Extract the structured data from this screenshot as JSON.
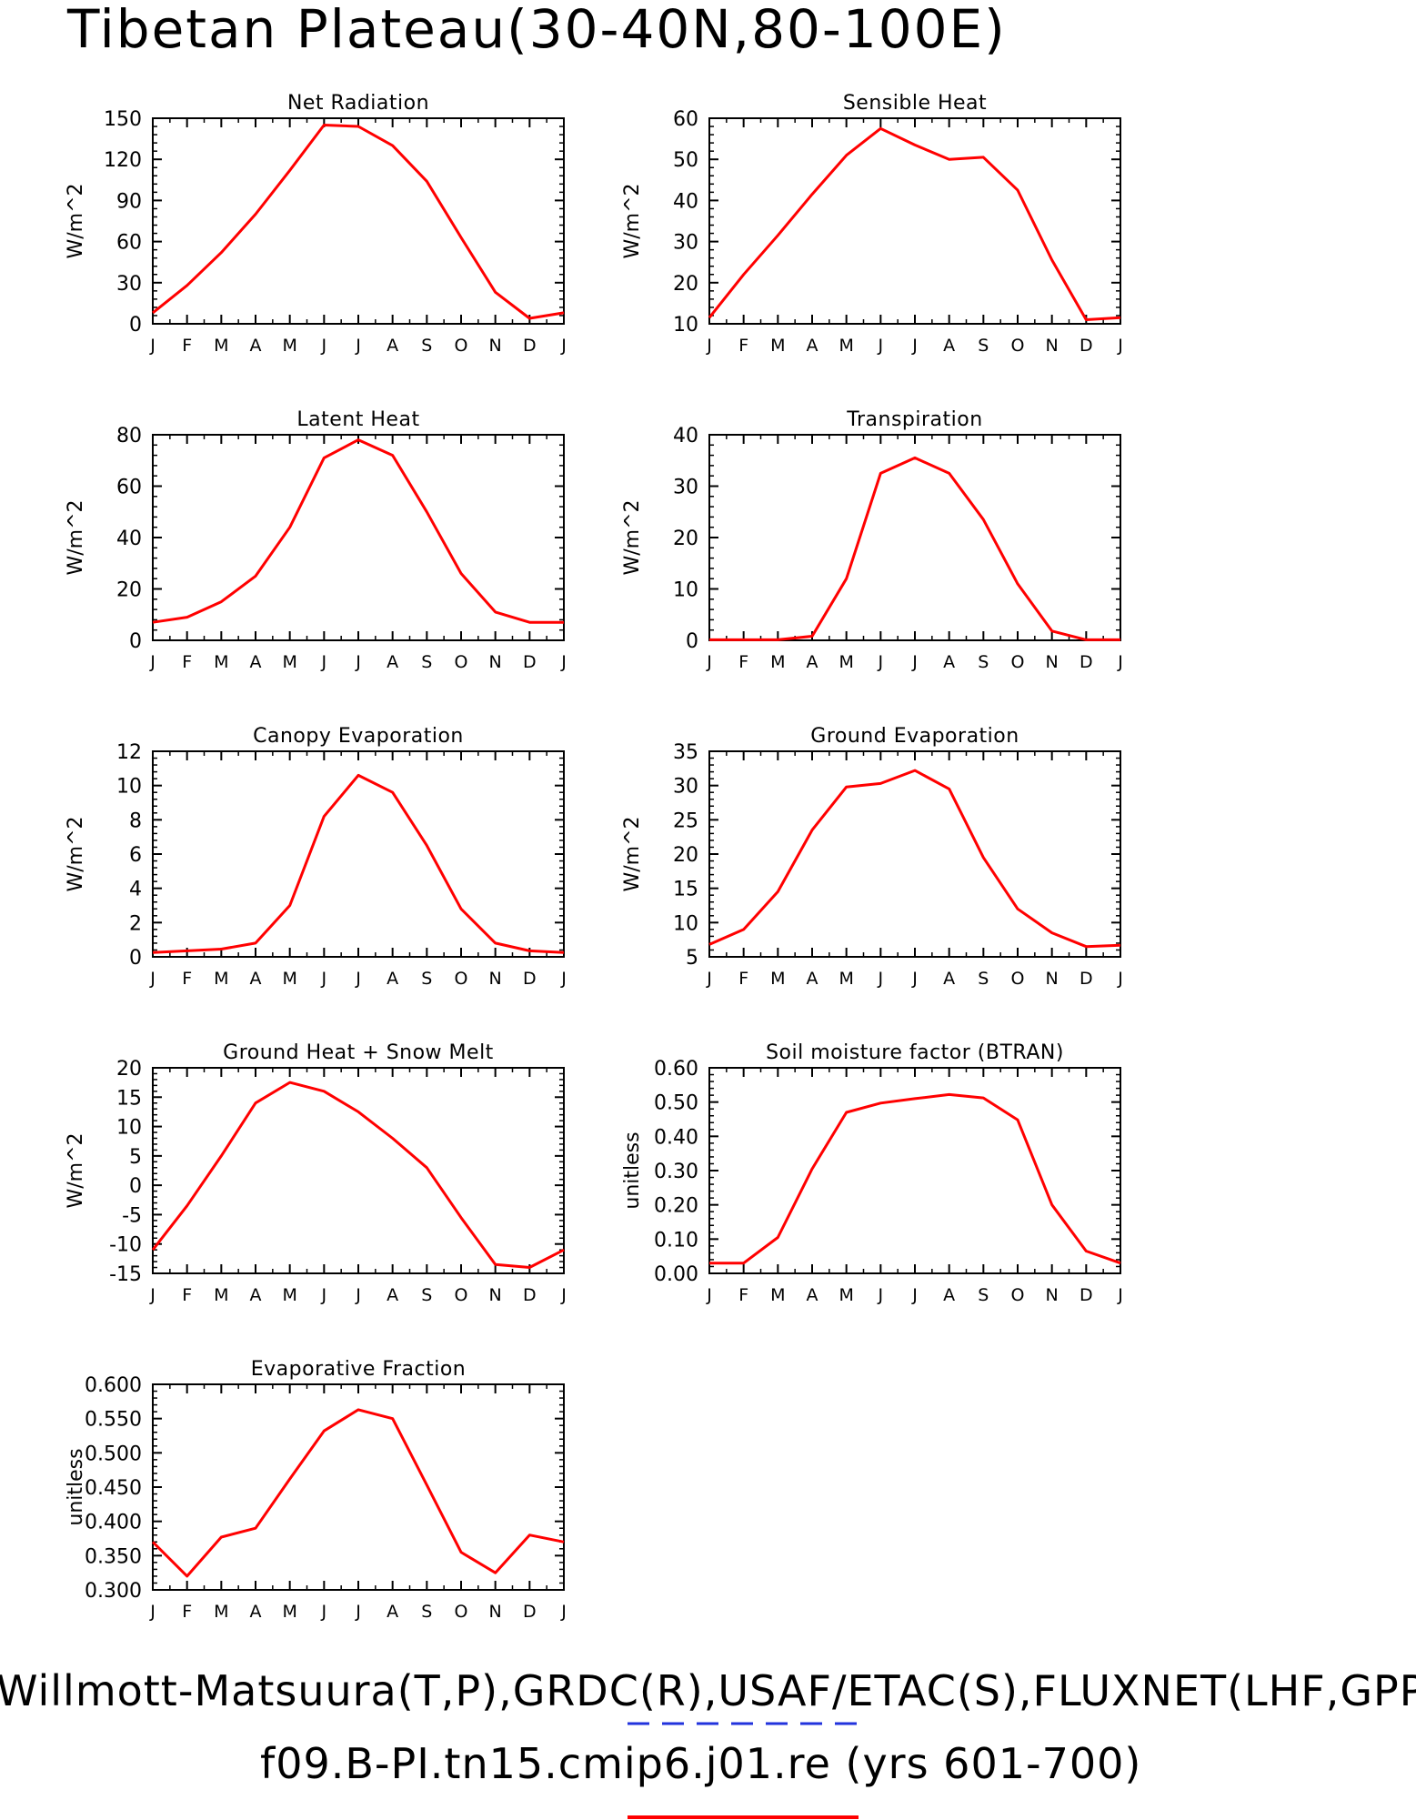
{
  "page": {
    "title": "Tibetan Plateau(30-40N,80-100E)",
    "footer_line1": "Willmott-Matsuura(T,P),GRDC(R),USAF/ETAC(S),FLUXNET(LHF,GPP)",
    "footer_line2": "f09.B-PI.tn15.cmip6.j01.re (yrs 601-700)",
    "legend_colors": {
      "observed": "#2233dd",
      "model": "#ff0000"
    }
  },
  "chart_data": [
    {
      "type": "line",
      "title": "Net Radiation",
      "ylabel": "W/m^2",
      "categories": [
        "J",
        "F",
        "M",
        "A",
        "M",
        "J",
        "J",
        "A",
        "S",
        "O",
        "N",
        "D",
        "J"
      ],
      "ylim": [
        0,
        150
      ],
      "yticks": [
        "0",
        "30",
        "60",
        "90",
        "120",
        "150"
      ],
      "series": [
        {
          "color": "#ff0000",
          "values": [
            8,
            28,
            52,
            80,
            112,
            145,
            144,
            130,
            104,
            63,
            23,
            4,
            8
          ]
        }
      ]
    },
    {
      "type": "line",
      "title": "Sensible Heat",
      "ylabel": "W/m^2",
      "categories": [
        "J",
        "F",
        "M",
        "A",
        "M",
        "J",
        "J",
        "A",
        "S",
        "O",
        "N",
        "D",
        "J"
      ],
      "ylim": [
        10,
        60
      ],
      "yticks": [
        "10",
        "20",
        "30",
        "40",
        "50",
        "60"
      ],
      "series": [
        {
          "color": "#ff0000",
          "values": [
            11.5,
            22,
            31.5,
            41.5,
            51,
            57.5,
            53.5,
            50,
            50.5,
            42.5,
            25.5,
            11,
            11.5
          ]
        }
      ]
    },
    {
      "type": "line",
      "title": "Latent Heat",
      "ylabel": "W/m^2",
      "categories": [
        "J",
        "F",
        "M",
        "A",
        "M",
        "J",
        "J",
        "A",
        "S",
        "O",
        "N",
        "D",
        "J"
      ],
      "ylim": [
        0,
        80
      ],
      "yticks": [
        "0",
        "20",
        "40",
        "60",
        "80"
      ],
      "series": [
        {
          "color": "#ff0000",
          "values": [
            7,
            9,
            15,
            25,
            44,
            71,
            78,
            72,
            50,
            26,
            11,
            7,
            7
          ]
        }
      ]
    },
    {
      "type": "line",
      "title": "Transpiration",
      "ylabel": "W/m^2",
      "categories": [
        "J",
        "F",
        "M",
        "A",
        "M",
        "J",
        "J",
        "A",
        "S",
        "O",
        "N",
        "D",
        "J"
      ],
      "ylim": [
        0,
        40
      ],
      "yticks": [
        "0",
        "10",
        "20",
        "30",
        "40"
      ],
      "series": [
        {
          "color": "#ff0000",
          "values": [
            0.1,
            0.1,
            0.1,
            0.8,
            12,
            32.5,
            35.5,
            32.5,
            23.5,
            11,
            1.8,
            0.1,
            0.1
          ]
        }
      ]
    },
    {
      "type": "line",
      "title": "Canopy Evaporation",
      "ylabel": "W/m^2",
      "categories": [
        "J",
        "F",
        "M",
        "A",
        "M",
        "J",
        "J",
        "A",
        "S",
        "O",
        "N",
        "D",
        "J"
      ],
      "ylim": [
        0,
        12
      ],
      "yticks": [
        "0",
        "2",
        "4",
        "6",
        "8",
        "10",
        "12"
      ],
      "series": [
        {
          "color": "#ff0000",
          "values": [
            0.25,
            0.35,
            0.45,
            0.8,
            3,
            8.2,
            10.6,
            9.6,
            6.5,
            2.8,
            0.8,
            0.35,
            0.25
          ]
        }
      ]
    },
    {
      "type": "line",
      "title": "Ground Evaporation",
      "ylabel": "W/m^2",
      "categories": [
        "J",
        "F",
        "M",
        "A",
        "M",
        "J",
        "J",
        "A",
        "S",
        "O",
        "N",
        "D",
        "J"
      ],
      "ylim": [
        5,
        35
      ],
      "yticks": [
        "5",
        "10",
        "15",
        "20",
        "25",
        "30",
        "35"
      ],
      "series": [
        {
          "color": "#ff0000",
          "values": [
            6.8,
            9,
            14.5,
            23.5,
            29.8,
            30.3,
            32.2,
            29.5,
            19.5,
            12,
            8.5,
            6.5,
            6.7
          ]
        }
      ]
    },
    {
      "type": "line",
      "title": "Ground Heat + Snow Melt",
      "ylabel": "W/m^2",
      "categories": [
        "J",
        "F",
        "M",
        "A",
        "M",
        "J",
        "J",
        "A",
        "S",
        "O",
        "N",
        "D",
        "J"
      ],
      "ylim": [
        -15,
        20
      ],
      "yticks": [
        "-15",
        "-10",
        "-5",
        "0",
        "5",
        "10",
        "15",
        "20"
      ],
      "series": [
        {
          "color": "#ff0000",
          "values": [
            -11,
            -3.5,
            5,
            14,
            17.5,
            16,
            12.5,
            8,
            3,
            -5.5,
            -13.5,
            -14,
            -11
          ]
        }
      ]
    },
    {
      "type": "line",
      "title": "Soil moisture factor (BTRAN)",
      "ylabel": "unitless",
      "categories": [
        "J",
        "F",
        "M",
        "A",
        "M",
        "J",
        "J",
        "A",
        "S",
        "O",
        "N",
        "D",
        "J"
      ],
      "ylim": [
        0,
        0.6
      ],
      "yticks": [
        "0.00",
        "0.10",
        "0.20",
        "0.30",
        "0.40",
        "0.50",
        "0.60"
      ],
      "series": [
        {
          "color": "#ff0000",
          "values": [
            0.03,
            0.03,
            0.105,
            0.305,
            0.47,
            0.497,
            0.51,
            0.522,
            0.512,
            0.448,
            0.2,
            0.065,
            0.03
          ]
        }
      ]
    },
    {
      "type": "line",
      "title": "Evaporative Fraction",
      "ylabel": "unitless",
      "categories": [
        "J",
        "F",
        "M",
        "A",
        "M",
        "J",
        "J",
        "A",
        "S",
        "O",
        "N",
        "D",
        "J"
      ],
      "ylim": [
        0.3,
        0.6
      ],
      "yticks": [
        "0.300",
        "0.350",
        "0.400",
        "0.450",
        "0.500",
        "0.550",
        "0.600"
      ],
      "series": [
        {
          "color": "#ff0000",
          "values": [
            0.37,
            0.32,
            0.377,
            0.39,
            0.462,
            0.532,
            0.563,
            0.55,
            0.453,
            0.355,
            0.325,
            0.38,
            0.37
          ]
        }
      ]
    }
  ]
}
